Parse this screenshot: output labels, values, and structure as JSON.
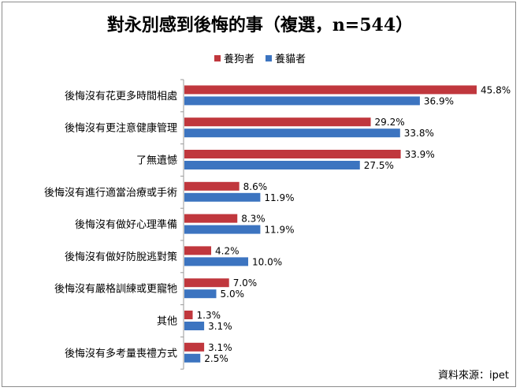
{
  "title": "對永別感到後悔的事（複選，n=544）",
  "source": "資料來源：ipet",
  "colors": {
    "dog": "#c0373d",
    "cat": "#3c74c0"
  },
  "chart_data": {
    "type": "bar",
    "orientation": "horizontal",
    "title": "對永別感到後悔的事（複選，n=544）",
    "value_suffix": "%",
    "xlim": [
      0,
      50
    ],
    "grid": false,
    "legend_position": "top-center",
    "categories": [
      "後悔沒有花更多時間相處",
      "後悔沒有更注意健康管理",
      "了無遺憾",
      "後悔沒有進行適當治療或手術",
      "後悔沒有做好心理準備",
      "後悔沒有做好防脫逃對策",
      "後悔沒有嚴格訓練或更寵牠",
      "其他",
      "後悔沒有多考量喪禮方式"
    ],
    "series": [
      {
        "name": "養狗者",
        "color": "#c0373d",
        "values": [
          45.8,
          29.2,
          33.9,
          8.6,
          8.3,
          4.2,
          7.0,
          1.3,
          3.1
        ]
      },
      {
        "name": "養貓者",
        "color": "#3c74c0",
        "values": [
          36.9,
          33.8,
          27.5,
          11.9,
          11.9,
          10.0,
          5.0,
          3.1,
          2.5
        ]
      }
    ]
  }
}
